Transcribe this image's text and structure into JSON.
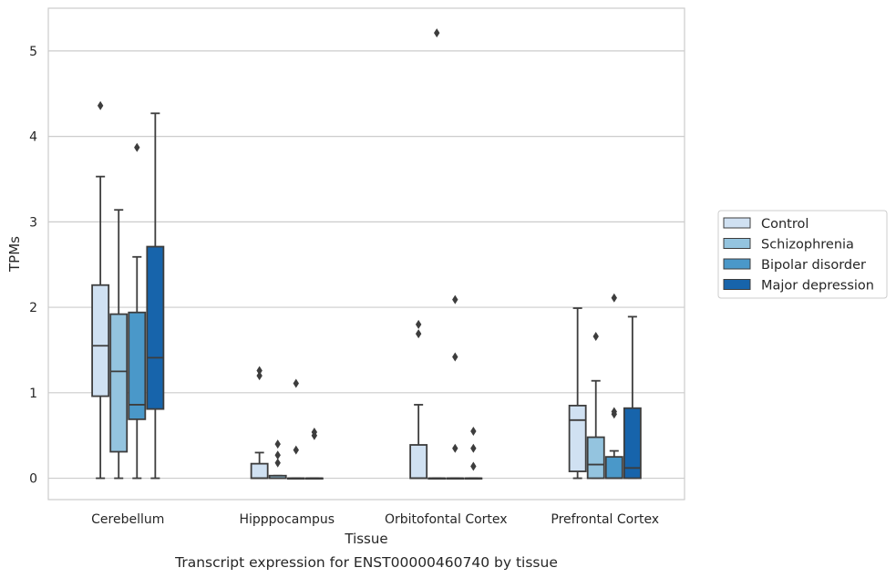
{
  "chart_data": {
    "type": "box",
    "title": "",
    "caption": "Transcript expression for ENST00000460740 by tissue",
    "xlabel": "Tissue",
    "ylabel": "TPMs",
    "ylim": [
      -0.25,
      5.5
    ],
    "yticks": [
      0,
      1,
      2,
      3,
      4,
      5
    ],
    "grid": "horizontal",
    "legend_position": "right",
    "categories": [
      "Cerebellum",
      "Hipppocampus",
      "Orbitofontal Cortex",
      "Prefrontal Cortex"
    ],
    "series": [
      {
        "name": "Control",
        "color": "#d0e1f2",
        "boxes": [
          {
            "whisker_low": 0,
            "q1": 0.96,
            "median": 1.55,
            "q3": 2.26,
            "whisker_high": 3.53,
            "outliers": [
              4.36
            ]
          },
          {
            "whisker_low": 0,
            "q1": 0,
            "median": 0,
            "q3": 0.17,
            "whisker_high": 0.3,
            "outliers": [
              1.2,
              1.26
            ]
          },
          {
            "whisker_low": 0,
            "q1": 0,
            "median": 0,
            "q3": 0.39,
            "whisker_high": 0.86,
            "outliers": [
              1.69,
              1.8
            ]
          },
          {
            "whisker_low": 0,
            "q1": 0.08,
            "median": 0.68,
            "q3": 0.85,
            "whisker_high": 1.99,
            "outliers": []
          }
        ]
      },
      {
        "name": "Schizophrenia",
        "color": "#94c4df",
        "boxes": [
          {
            "whisker_low": 0,
            "q1": 0.31,
            "median": 1.25,
            "q3": 1.92,
            "whisker_high": 3.14,
            "outliers": []
          },
          {
            "whisker_low": 0,
            "q1": 0,
            "median": 0,
            "q3": 0.03,
            "whisker_high": 0.03,
            "outliers": [
              0.18,
              0.27,
              0.4
            ]
          },
          {
            "whisker_low": 0,
            "q1": 0,
            "median": 0,
            "q3": 0,
            "whisker_high": 0,
            "outliers": [
              5.21
            ]
          },
          {
            "whisker_low": 0,
            "q1": 0,
            "median": 0.16,
            "q3": 0.48,
            "whisker_high": 1.14,
            "outliers": [
              1.66
            ]
          }
        ]
      },
      {
        "name": "Bipolar disorder",
        "color": "#4a98c9",
        "boxes": [
          {
            "whisker_low": 0,
            "q1": 0.69,
            "median": 0.86,
            "q3": 1.94,
            "whisker_high": 2.59,
            "outliers": [
              3.87
            ]
          },
          {
            "whisker_low": 0,
            "q1": 0,
            "median": 0,
            "q3": 0,
            "whisker_high": 0,
            "outliers": [
              0.33,
              1.11
            ]
          },
          {
            "whisker_low": 0,
            "q1": 0,
            "median": 0,
            "q3": 0,
            "whisker_high": 0,
            "outliers": [
              0.35,
              1.42,
              2.09
            ]
          },
          {
            "whisker_low": 0,
            "q1": 0,
            "median": 0,
            "q3": 0.25,
            "whisker_high": 0.32,
            "outliers": [
              0.75,
              0.78,
              2.11
            ]
          }
        ]
      },
      {
        "name": "Major depression",
        "color": "#1764ab",
        "boxes": [
          {
            "whisker_low": 0,
            "q1": 0.81,
            "median": 1.41,
            "q3": 2.71,
            "whisker_high": 4.27,
            "outliers": []
          },
          {
            "whisker_low": 0,
            "q1": 0,
            "median": 0,
            "q3": 0,
            "whisker_high": 0,
            "outliers": [
              0.5,
              0.54
            ]
          },
          {
            "whisker_low": 0,
            "q1": 0,
            "median": 0,
            "q3": 0,
            "whisker_high": 0,
            "outliers": [
              0.14,
              0.35,
              0.55
            ]
          },
          {
            "whisker_low": 0,
            "q1": 0,
            "median": 0.12,
            "q3": 0.82,
            "whisker_high": 1.89,
            "outliers": []
          }
        ]
      }
    ]
  }
}
